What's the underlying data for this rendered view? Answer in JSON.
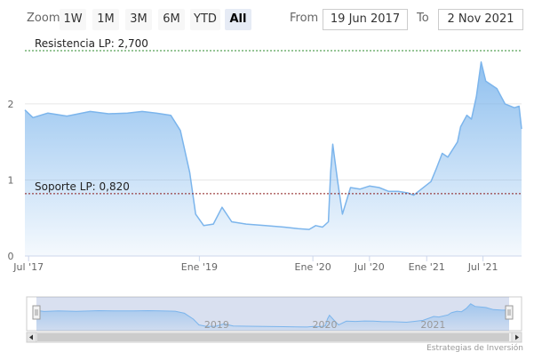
{
  "range_selector": {
    "zoom_label": "Zoom",
    "buttons": [
      "1W",
      "1M",
      "3M",
      "6M",
      "YTD",
      "All"
    ],
    "selected": "All",
    "from_label": "From",
    "from_value": "19 Jun 2017",
    "to_label": "To",
    "to_value": "2 Nov 2021"
  },
  "chart_data": {
    "type": "area",
    "title": "",
    "xlabel": "",
    "ylabel": "",
    "x_range": [
      "2017-06-19",
      "2021-11-02"
    ],
    "ylim": [
      0,
      2.7
    ],
    "grid": true,
    "y_ticks": [
      "0",
      "1",
      "2"
    ],
    "x_ticks": [
      {
        "date": "2017-07-01",
        "label": "Jul '17"
      },
      {
        "date": "2019-01-01",
        "label": "Ene '19"
      },
      {
        "date": "2020-01-01",
        "label": "Ene '20"
      },
      {
        "date": "2020-07-01",
        "label": "Jul '20"
      },
      {
        "date": "2021-01-01",
        "label": "Ene '21"
      },
      {
        "date": "2021-07-01",
        "label": "Jul '21"
      }
    ],
    "series": [
      {
        "x": [
          "2017-06-19",
          "2017-07-15",
          "2017-09-01",
          "2017-11-01",
          "2018-01-15",
          "2018-03-15",
          "2018-05-15",
          "2018-07-01",
          "2018-08-15",
          "2018-10-01",
          "2018-11-01",
          "2018-12-01",
          "2018-12-20",
          "2019-01-15",
          "2019-02-15",
          "2019-03-15",
          "2019-04-15",
          "2019-06-01",
          "2019-08-01",
          "2019-10-01",
          "2019-11-15",
          "2019-12-20",
          "2020-01-10",
          "2020-02-01",
          "2020-02-20",
          "2020-02-27",
          "2020-03-05",
          "2020-03-20",
          "2020-04-05",
          "2020-05-01",
          "2020-06-01",
          "2020-07-01",
          "2020-08-01",
          "2020-09-01",
          "2020-10-01",
          "2020-11-01",
          "2020-11-20",
          "2020-12-15",
          "2021-01-15",
          "2021-02-01",
          "2021-02-20",
          "2021-03-10",
          "2021-04-10",
          "2021-04-20",
          "2021-05-10",
          "2021-05-25",
          "2021-06-10",
          "2021-06-25",
          "2021-07-10",
          "2021-08-15",
          "2021-09-10",
          "2021-10-10",
          "2021-10-25",
          "2021-11-02"
        ],
        "values": [
          1.92,
          1.82,
          1.88,
          1.84,
          1.9,
          1.87,
          1.88,
          1.9,
          1.88,
          1.85,
          1.65,
          1.1,
          0.55,
          0.4,
          0.42,
          0.64,
          0.45,
          0.42,
          0.4,
          0.38,
          0.36,
          0.35,
          0.4,
          0.38,
          0.45,
          1.1,
          1.47,
          1.0,
          0.55,
          0.9,
          0.88,
          0.92,
          0.9,
          0.85,
          0.85,
          0.83,
          0.8,
          0.88,
          0.98,
          1.15,
          1.35,
          1.3,
          1.5,
          1.7,
          1.85,
          1.8,
          2.1,
          2.55,
          2.3,
          2.2,
          2.0,
          1.95,
          1.97,
          1.67
        ]
      }
    ],
    "reference_lines": [
      {
        "label": "Resistencia LP: 2,700",
        "value": 2.7,
        "color": "#2e8b2e"
      },
      {
        "label": "Soporte LP: 0,820",
        "value": 0.82,
        "color": "#8b1a1a"
      }
    ],
    "navigator": {
      "x_labels": [
        {
          "date": "2019-01-01",
          "label": "2019"
        },
        {
          "date": "2020-01-01",
          "label": "2020"
        },
        {
          "date": "2021-01-01",
          "label": "2021"
        }
      ]
    },
    "colors": {
      "line": "#7cb5ec",
      "area_top": "#7cb5ec",
      "grid": "#e6e6e6"
    }
  },
  "credits": "Estrategias de Inversión"
}
